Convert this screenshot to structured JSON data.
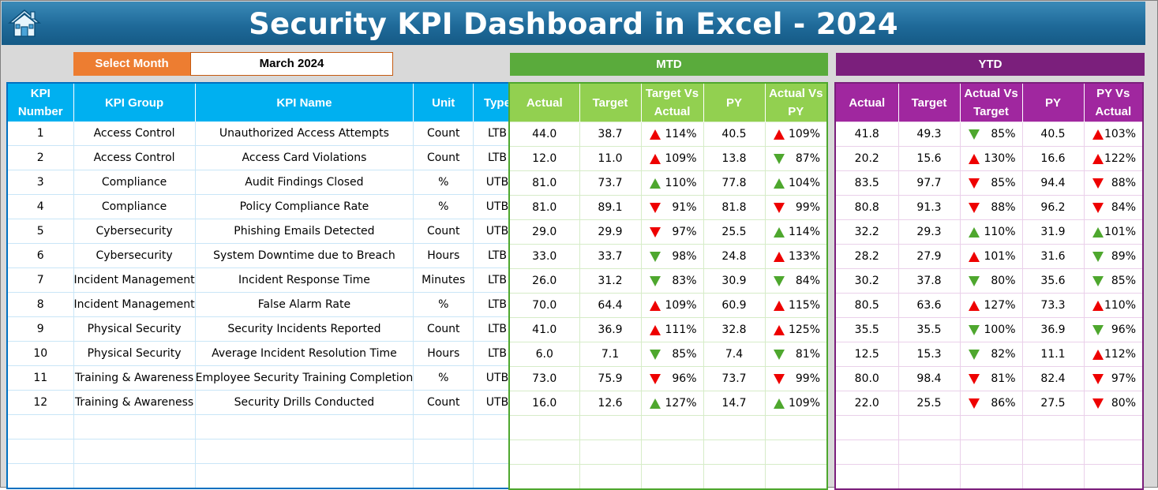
{
  "title": "Security KPI Dashboard in Excel - 2024",
  "controls": {
    "select_month_label": "Select Month",
    "selected_month": "March 2024"
  },
  "sections": {
    "mtd": "MTD",
    "ytd": "YTD"
  },
  "kpi_headers": [
    "KPI Number",
    "KPI Group",
    "KPI Name",
    "Unit",
    "Type"
  ],
  "mtd_headers": [
    "Actual",
    "Target",
    "Target Vs Actual",
    "PY",
    "Actual Vs PY"
  ],
  "ytd_headers": [
    "Actual",
    "Target",
    "Actual Vs Target",
    "PY",
    "PY Vs Actual"
  ],
  "colors": {
    "title_bar": "#1f6a99",
    "kpi_header": "#00b0f0",
    "mtd_header": "#92d050",
    "ytd_header": "#a0279f",
    "arrow_up": "#ee0000",
    "arrow_down": "#4ea72e",
    "month_label": "#ed7d31"
  },
  "rows": [
    {
      "num": "1",
      "group": "Access Control",
      "name": "Unauthorized Access Attempts",
      "unit": "Count",
      "type": "LTB",
      "mtd": {
        "actual": "44.0",
        "target": "38.7",
        "tva": "114%",
        "tva_dir": "up",
        "py": "40.5",
        "avp": "109%",
        "avp_dir": "up"
      },
      "ytd": {
        "actual": "41.8",
        "target": "49.3",
        "avt": "85%",
        "avt_dir": "down",
        "py": "40.5",
        "pva": "103%",
        "pva_dir": "up"
      }
    },
    {
      "num": "2",
      "group": "Access Control",
      "name": "Access Card Violations",
      "unit": "Count",
      "type": "LTB",
      "mtd": {
        "actual": "12.0",
        "target": "11.0",
        "tva": "109%",
        "tva_dir": "up",
        "py": "13.8",
        "avp": "87%",
        "avp_dir": "down"
      },
      "ytd": {
        "actual": "20.2",
        "target": "15.6",
        "avt": "130%",
        "avt_dir": "up",
        "py": "16.6",
        "pva": "122%",
        "pva_dir": "up"
      }
    },
    {
      "num": "3",
      "group": "Compliance",
      "name": "Audit Findings Closed",
      "unit": "%",
      "type": "UTB",
      "mtd": {
        "actual": "81.0",
        "target": "73.7",
        "tva": "110%",
        "tva_dir": "upg",
        "py": "77.8",
        "avp": "104%",
        "avp_dir": "upg"
      },
      "ytd": {
        "actual": "83.5",
        "target": "97.7",
        "avt": "85%",
        "avt_dir": "downr",
        "py": "94.4",
        "pva": "88%",
        "pva_dir": "downr"
      }
    },
    {
      "num": "4",
      "group": "Compliance",
      "name": "Policy Compliance Rate",
      "unit": "%",
      "type": "UTB",
      "mtd": {
        "actual": "81.0",
        "target": "89.1",
        "tva": "91%",
        "tva_dir": "downr",
        "py": "81.8",
        "avp": "99%",
        "avp_dir": "downr"
      },
      "ytd": {
        "actual": "80.8",
        "target": "91.3",
        "avt": "88%",
        "avt_dir": "downr",
        "py": "96.2",
        "pva": "84%",
        "pva_dir": "downr"
      }
    },
    {
      "num": "5",
      "group": "Cybersecurity",
      "name": "Phishing Emails Detected",
      "unit": "Count",
      "type": "UTB",
      "mtd": {
        "actual": "29.0",
        "target": "29.9",
        "tva": "97%",
        "tva_dir": "downr",
        "py": "25.5",
        "avp": "114%",
        "avp_dir": "upg"
      },
      "ytd": {
        "actual": "32.2",
        "target": "29.3",
        "avt": "110%",
        "avt_dir": "upg",
        "py": "31.9",
        "pva": "101%",
        "pva_dir": "upg"
      }
    },
    {
      "num": "6",
      "group": "Cybersecurity",
      "name": "System Downtime due to Breach",
      "unit": "Hours",
      "type": "LTB",
      "mtd": {
        "actual": "33.0",
        "target": "33.7",
        "tva": "98%",
        "tva_dir": "down",
        "py": "24.8",
        "avp": "133%",
        "avp_dir": "up"
      },
      "ytd": {
        "actual": "28.2",
        "target": "27.9",
        "avt": "101%",
        "avt_dir": "up",
        "py": "31.6",
        "pva": "89%",
        "pva_dir": "down"
      }
    },
    {
      "num": "7",
      "group": "Incident Management",
      "name": "Incident Response Time",
      "unit": "Minutes",
      "type": "LTB",
      "mtd": {
        "actual": "26.0",
        "target": "31.2",
        "tva": "83%",
        "tva_dir": "down",
        "py": "30.9",
        "avp": "84%",
        "avp_dir": "down"
      },
      "ytd": {
        "actual": "30.2",
        "target": "37.8",
        "avt": "80%",
        "avt_dir": "down",
        "py": "35.6",
        "pva": "85%",
        "pva_dir": "down"
      }
    },
    {
      "num": "8",
      "group": "Incident Management",
      "name": "False Alarm Rate",
      "unit": "%",
      "type": "LTB",
      "mtd": {
        "actual": "70.0",
        "target": "64.4",
        "tva": "109%",
        "tva_dir": "up",
        "py": "60.9",
        "avp": "115%",
        "avp_dir": "up"
      },
      "ytd": {
        "actual": "80.5",
        "target": "63.6",
        "avt": "127%",
        "avt_dir": "up",
        "py": "73.3",
        "pva": "110%",
        "pva_dir": "up"
      }
    },
    {
      "num": "9",
      "group": "Physical Security",
      "name": "Security Incidents Reported",
      "unit": "Count",
      "type": "LTB",
      "mtd": {
        "actual": "41.0",
        "target": "36.9",
        "tva": "111%",
        "tva_dir": "up",
        "py": "32.8",
        "avp": "125%",
        "avp_dir": "up"
      },
      "ytd": {
        "actual": "35.5",
        "target": "35.5",
        "avt": "100%",
        "avt_dir": "down",
        "py": "36.9",
        "pva": "96%",
        "pva_dir": "down"
      }
    },
    {
      "num": "10",
      "group": "Physical Security",
      "name": "Average Incident Resolution Time",
      "unit": "Hours",
      "type": "LTB",
      "mtd": {
        "actual": "6.0",
        "target": "7.1",
        "tva": "85%",
        "tva_dir": "down",
        "py": "7.4",
        "avp": "81%",
        "avp_dir": "down"
      },
      "ytd": {
        "actual": "12.5",
        "target": "15.3",
        "avt": "82%",
        "avt_dir": "down",
        "py": "11.1",
        "pva": "112%",
        "pva_dir": "up"
      }
    },
    {
      "num": "11",
      "group": "Training & Awareness",
      "name": "Employee Security Training Completion",
      "unit": "%",
      "type": "UTB",
      "mtd": {
        "actual": "73.0",
        "target": "75.9",
        "tva": "96%",
        "tva_dir": "downr",
        "py": "73.7",
        "avp": "99%",
        "avp_dir": "downr"
      },
      "ytd": {
        "actual": "80.0",
        "target": "98.4",
        "avt": "81%",
        "avt_dir": "downr",
        "py": "82.4",
        "pva": "97%",
        "pva_dir": "downr"
      }
    },
    {
      "num": "12",
      "group": "Training & Awareness",
      "name": "Security Drills Conducted",
      "unit": "Count",
      "type": "UTB",
      "mtd": {
        "actual": "16.0",
        "target": "12.6",
        "tva": "127%",
        "tva_dir": "upg",
        "py": "14.7",
        "avp": "109%",
        "avp_dir": "upg"
      },
      "ytd": {
        "actual": "22.0",
        "target": "25.5",
        "avt": "86%",
        "avt_dir": "downr",
        "py": "27.5",
        "pva": "80%",
        "pva_dir": "downr"
      }
    }
  ],
  "empty_rows": 3
}
